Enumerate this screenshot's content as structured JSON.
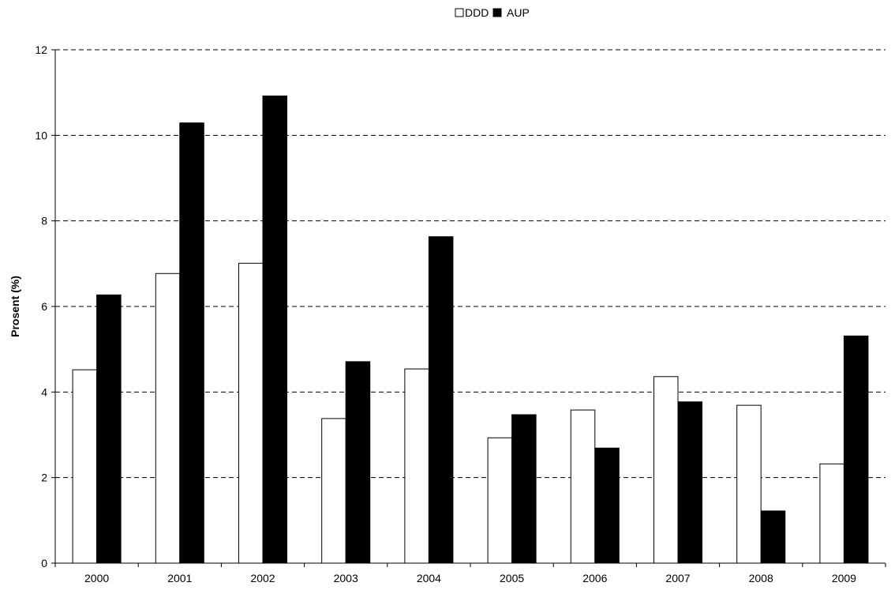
{
  "chart_data": {
    "type": "bar",
    "categories": [
      "2000",
      "2001",
      "2002",
      "2003",
      "2004",
      "2005",
      "2006",
      "2007",
      "2008",
      "2009"
    ],
    "series": [
      {
        "name": "DDD",
        "color": "#ffffff",
        "values": [
          4.52,
          6.77,
          7.01,
          3.38,
          4.54,
          2.93,
          3.58,
          4.36,
          3.69,
          2.32
        ]
      },
      {
        "name": "AUP",
        "color": "#000000",
        "values": [
          6.27,
          10.29,
          10.92,
          4.71,
          7.63,
          3.47,
          2.69,
          3.77,
          1.22,
          5.31
        ]
      }
    ],
    "title": "",
    "xlabel": "",
    "ylabel": "Prosent (%)",
    "ylim": [
      0,
      12
    ],
    "yticks": [
      0,
      2,
      4,
      6,
      8,
      10,
      12
    ],
    "grid": "horizontal dashed",
    "legend_position": "top-center"
  }
}
